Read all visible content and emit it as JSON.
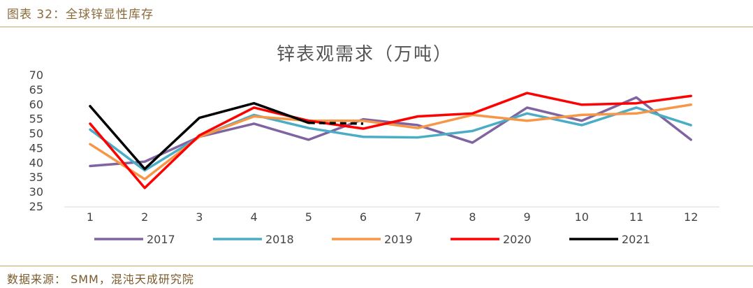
{
  "figure_caption": "图表 32：全球锌显性库存",
  "source_note": "数据来源： SMM，混沌天成研究院",
  "chart_data": {
    "type": "line",
    "title": "锌表观需求（万吨）",
    "xlabel": "",
    "ylabel": "",
    "categories": [
      "1",
      "2",
      "3",
      "4",
      "5",
      "6",
      "7",
      "8",
      "9",
      "10",
      "11",
      "12"
    ],
    "y_ticks": [
      "25",
      "30",
      "35",
      "40",
      "45",
      "50",
      "55",
      "60",
      "65",
      "70"
    ],
    "ylim": [
      25,
      70
    ],
    "grid": false,
    "legend_position": "bottom",
    "series": [
      {
        "name": "2017",
        "color": "#8064a2",
        "values": [
          39,
          40.5,
          49,
          53.5,
          48,
          55,
          53,
          47,
          59,
          54.5,
          62.5,
          48
        ]
      },
      {
        "name": "2018",
        "color": "#4bacc6",
        "values": [
          51.5,
          37.5,
          49,
          56.5,
          52,
          49,
          48.8,
          51,
          57,
          53,
          59,
          53
        ]
      },
      {
        "name": "2019",
        "color": "#f79646",
        "values": [
          46.5,
          34.5,
          49,
          56,
          54.5,
          54.5,
          52,
          56.5,
          54.5,
          56.5,
          57,
          60
        ]
      },
      {
        "name": "2020",
        "color": "#ff0000",
        "values": [
          53.5,
          31.5,
          49.5,
          59,
          54.5,
          51.8,
          56,
          57,
          64,
          60,
          60.5,
          63
        ]
      },
      {
        "name": "2021",
        "color": "#000000",
        "values": [
          59.5,
          38,
          55.5,
          60.5,
          53.8,
          53.5,
          null,
          null,
          null,
          null,
          null,
          null
        ],
        "dashed_from_index": 4
      }
    ]
  }
}
